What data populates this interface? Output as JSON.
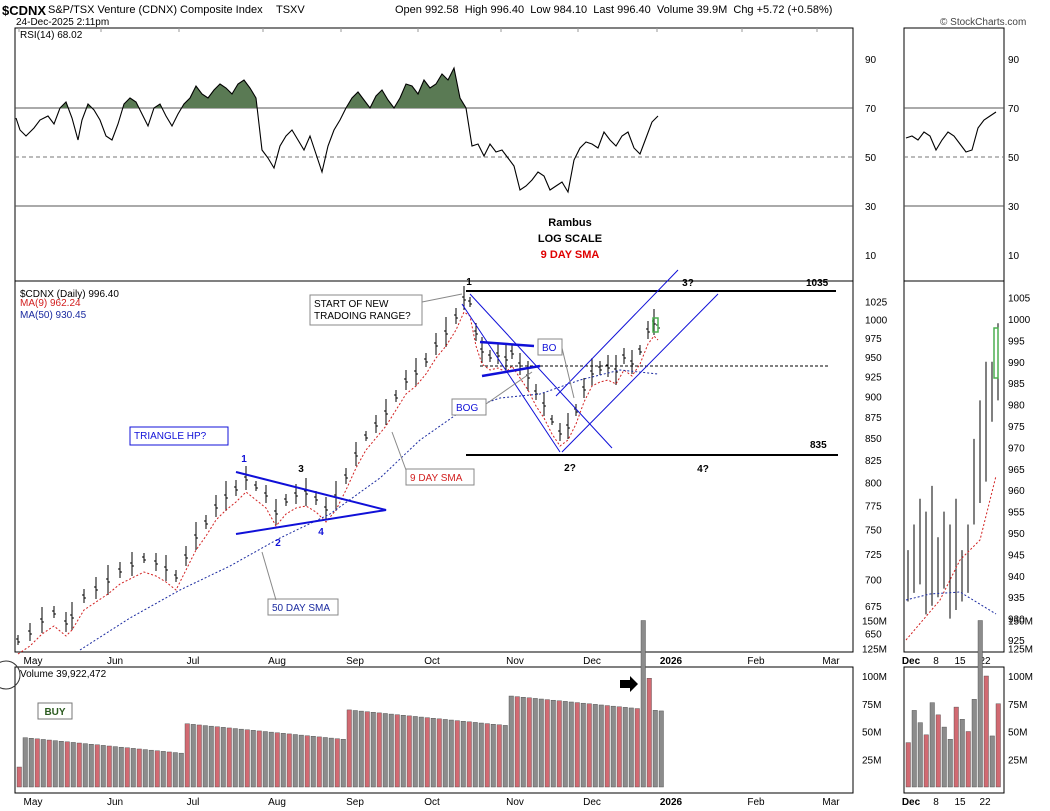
{
  "header": {
    "symbol": "$CDNX",
    "name": "S&P/TSX Venture (CDNX) Composite Index",
    "exchange": "TSXV",
    "datetime": "24-Dec-2025 2:11pm",
    "open_label": "Open",
    "open": "992.58",
    "high_label": "High",
    "high": "996.40",
    "low_label": "Low",
    "low": "984.10",
    "last_label": "Last",
    "last": "996.40",
    "volume_label": "Volume",
    "volume": "39.9M",
    "chg_label": "Chg",
    "chg": "+5.72 (+0.58%)",
    "watermark": "© StockCharts.com"
  },
  "colors": {
    "rsi_fill": "#5a7a54",
    "sma9": "#d22020",
    "sma50": "#1a2aa0",
    "annotation_blue": "#1010d8",
    "bar_up": "#000000",
    "vol_up": "#8c8c8c",
    "vol_down": "#d16a72",
    "last_bar_highlight": "#4caf50"
  },
  "chart_data": [
    {
      "type": "line",
      "panel": "RSI",
      "label": "RSI(14) 68.02",
      "ylim": [
        0,
        100
      ],
      "yticks": [
        "10",
        "30",
        "50",
        "70",
        "90"
      ],
      "overbought": 70,
      "oversold": 50,
      "last_value": 68.02,
      "note_lines": [
        "Rambus",
        "LOG SCALE",
        "9 DAY SMA"
      ]
    },
    {
      "type": "bar",
      "panel": "price",
      "title": "$CDNX (Daily) 996.40",
      "scale": "log",
      "ylim": [
        640,
        1040
      ],
      "yticks": [
        "650",
        "675",
        "700",
        "725",
        "750",
        "775",
        "800",
        "825",
        "850",
        "875",
        "900",
        "925",
        "950",
        "975",
        "1000",
        "1025"
      ],
      "xticks": [
        "May",
        "Jun",
        "Jul",
        "Aug",
        "Sep",
        "Oct",
        "Nov",
        "Dec",
        "2026",
        "Feb",
        "Mar"
      ],
      "series": [
        {
          "name": "$CDNX (Daily) 996.40"
        },
        {
          "name": "MA(9) 962.24",
          "last_value": 962.24
        },
        {
          "name": "MA(50) 930.45",
          "last_value": 930.45
        }
      ],
      "levels": [
        {
          "value": 1035,
          "label": "1035"
        },
        {
          "value": 835,
          "label": "835"
        }
      ],
      "annotations": {
        "start_range": [
          "START OF NEW",
          "TRADOING RANGE?"
        ],
        "triangle_hp": "TRIANGLE HP?",
        "bo": "BO",
        "bog": "BOG",
        "sma9_label": "9 DAY SMA",
        "sma50_label": "50 DAY SMA",
        "w1": "1",
        "w2": "2",
        "w3": "3",
        "w4": "4",
        "r1": "1",
        "r2": "2?",
        "r3": "3?",
        "r4": "4?"
      }
    },
    {
      "type": "bar",
      "panel": "volume",
      "label": "Volume 39,922,472",
      "last_value": 39922472,
      "yticks": [
        "25M",
        "50M",
        "75M",
        "100M",
        "125M",
        "150M"
      ],
      "buy_label": "BUY"
    },
    {
      "type": "bar",
      "panel": "inset",
      "xticks": [
        "Dec",
        "8",
        "15",
        "22"
      ],
      "price_yticks": [
        "925",
        "930",
        "935",
        "940",
        "945",
        "950",
        "955",
        "960",
        "965",
        "970",
        "975",
        "980",
        "985",
        "990",
        "995",
        "1000",
        "1005"
      ],
      "rsi_yticks": [
        "30",
        "50",
        "70",
        "90"
      ],
      "vol_yticks": [
        "25M",
        "50M",
        "75M",
        "100M",
        "125M",
        "150M"
      ]
    }
  ]
}
